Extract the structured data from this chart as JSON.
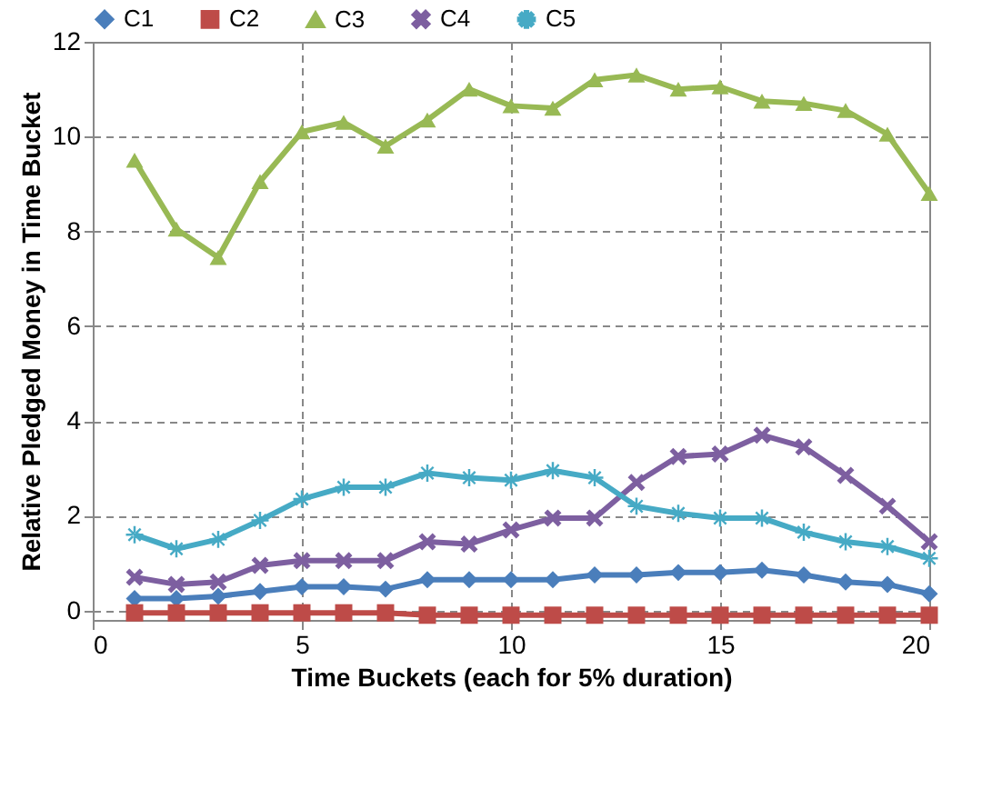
{
  "chart_data": {
    "type": "line",
    "xlabel": "Time Buckets (each for 5% duration)",
    "ylabel": "Relative Pledged Money in Time Bucket",
    "x": [
      1,
      2,
      3,
      4,
      5,
      6,
      7,
      8,
      9,
      10,
      11,
      12,
      13,
      14,
      15,
      16,
      17,
      18,
      19,
      20
    ],
    "xlim": [
      0,
      20
    ],
    "xticks": [
      0,
      5,
      10,
      15,
      20
    ],
    "ylim": [
      -0.2,
      12
    ],
    "yticks": [
      0,
      2,
      4,
      6,
      8,
      10,
      12
    ],
    "grid": true,
    "legend": "top",
    "series": [
      {
        "name": "C1",
        "color": "#4a7ebb",
        "marker": "diamond",
        "values": [
          0.25,
          0.25,
          0.3,
          0.4,
          0.5,
          0.5,
          0.45,
          0.65,
          0.65,
          0.65,
          0.65,
          0.75,
          0.75,
          0.8,
          0.8,
          0.85,
          0.75,
          0.6,
          0.55,
          0.35
        ]
      },
      {
        "name": "C2",
        "color": "#be4b48",
        "marker": "square",
        "values": [
          -0.05,
          -0.05,
          -0.05,
          -0.05,
          -0.05,
          -0.05,
          -0.05,
          -0.1,
          -0.1,
          -0.1,
          -0.1,
          -0.1,
          -0.1,
          -0.1,
          -0.1,
          -0.1,
          -0.1,
          -0.1,
          -0.1,
          -0.1
        ]
      },
      {
        "name": "C3",
        "color": "#98b954",
        "marker": "triangle",
        "values": [
          9.5,
          8.05,
          7.45,
          9.05,
          10.1,
          10.3,
          9.8,
          10.35,
          11.0,
          10.65,
          10.6,
          11.2,
          11.3,
          11.0,
          11.05,
          10.75,
          10.7,
          10.55,
          10.05,
          8.8
        ]
      },
      {
        "name": "C4",
        "color": "#7d5fa0",
        "marker": "cross",
        "values": [
          0.7,
          0.55,
          0.6,
          0.95,
          1.05,
          1.05,
          1.05,
          1.45,
          1.4,
          1.7,
          1.95,
          1.95,
          2.7,
          3.25,
          3.3,
          3.7,
          3.45,
          2.85,
          2.2,
          1.45
        ]
      },
      {
        "name": "C5",
        "color": "#46aac5",
        "marker": "star",
        "values": [
          1.6,
          1.3,
          1.5,
          1.9,
          2.35,
          2.6,
          2.6,
          2.9,
          2.8,
          2.75,
          2.95,
          2.8,
          2.2,
          2.05,
          1.95,
          1.95,
          1.65,
          1.45,
          1.35,
          1.1
        ]
      }
    ]
  }
}
